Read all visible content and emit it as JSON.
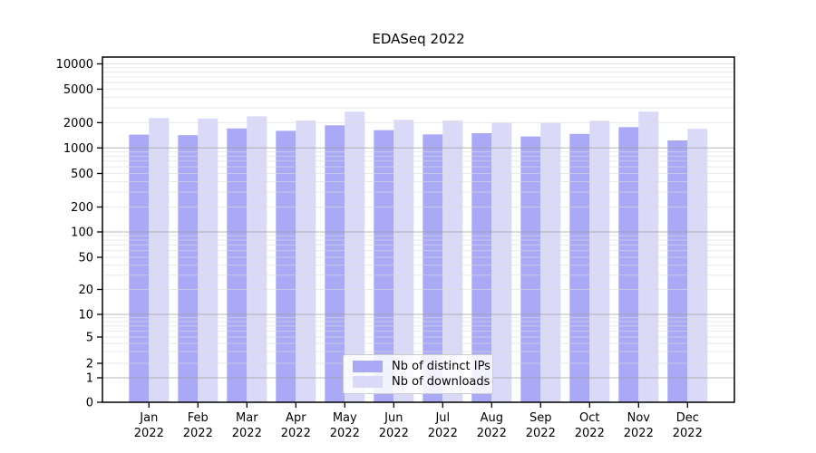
{
  "chart_data": {
    "type": "bar",
    "title": "EDASeq 2022",
    "year_label": "2022",
    "categories": [
      "Jan",
      "Feb",
      "Mar",
      "Apr",
      "May",
      "Jun",
      "Jul",
      "Aug",
      "Sep",
      "Oct",
      "Nov",
      "Dec"
    ],
    "series": [
      {
        "name": "Nb of distinct IPs",
        "color": "#a9a9f5",
        "values": [
          1440,
          1420,
          1710,
          1600,
          1860,
          1630,
          1450,
          1500,
          1370,
          1470,
          1770,
          1230
        ]
      },
      {
        "name": "Nb of downloads",
        "color": "#dadaf8",
        "values": [
          2270,
          2230,
          2380,
          2120,
          2700,
          2160,
          2120,
          1990,
          1980,
          2110,
          2700,
          1690
        ]
      }
    ],
    "y_ticks": [
      0,
      1,
      2,
      5,
      10,
      20,
      50,
      100,
      200,
      500,
      1000,
      2000,
      5000,
      10000
    ],
    "y_scale": "symlog",
    "ylim": [
      0,
      10000
    ],
    "grid": "minor log lines + gray decade lines, drawn over bars",
    "legend_position": "bottom-center",
    "colors": {
      "axis": "#000000",
      "grid_major": "#9f9f9f",
      "grid_minor": "#dcdcdc",
      "tick_label": "#000000"
    }
  }
}
